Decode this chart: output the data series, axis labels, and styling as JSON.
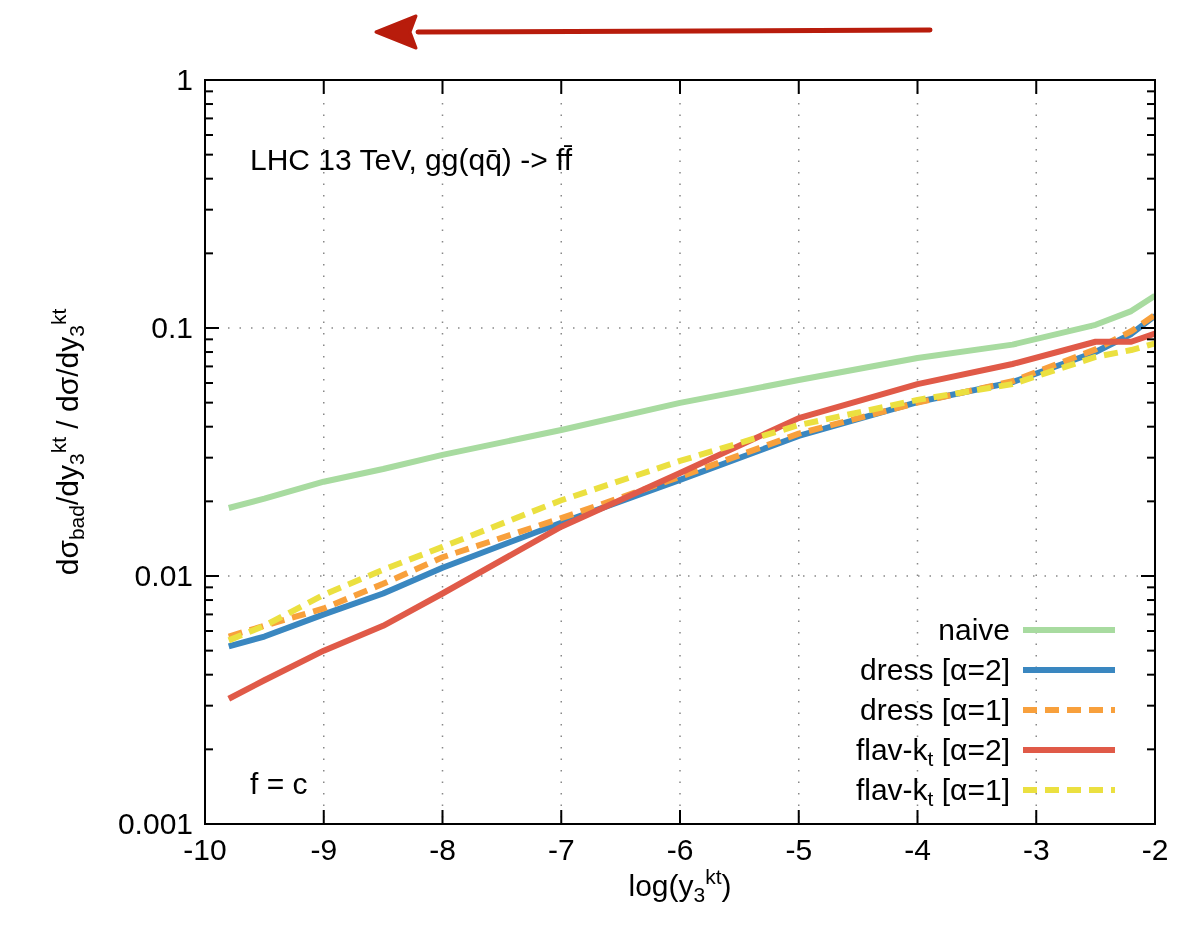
{
  "chart_data": {
    "type": "line",
    "xlabel": "log(y$_{3}$$^{kt}$)",
    "ylabel": "dσ$_{bad}$/dy$_{3}$$^{kt}$ / dσ/dy$_{3}$$^{kt}$",
    "annotations": [
      "LHC 13 TeV, gg(qq̄) -> ff̄",
      "f = c"
    ],
    "x": [
      -9.8,
      -9.5,
      -9,
      -8.5,
      -8,
      -7,
      -6,
      -5,
      -4,
      -3.2,
      -2.5,
      -2.2,
      -2
    ],
    "log": "y",
    "xlim": [
      -10,
      -2
    ],
    "ylim": [
      0.001,
      1
    ],
    "xticks": [
      -10,
      -9,
      -8,
      -7,
      -6,
      -5,
      -4,
      -3,
      -2
    ],
    "yticks": [
      0.001,
      {
        "value": 0.002,
        "label": null
      },
      {
        "value": 0.003,
        "label": null
      },
      {
        "value": 0.004,
        "label": null
      },
      {
        "value": 0.005,
        "label": null
      },
      {
        "value": 0.006,
        "label": null
      },
      {
        "value": 0.007,
        "label": null
      },
      {
        "value": 0.008,
        "label": null
      },
      {
        "value": 0.009,
        "label": null
      },
      0.01,
      {
        "value": 0.02,
        "label": null
      },
      {
        "value": 0.03,
        "label": null
      },
      {
        "value": 0.04,
        "label": null
      },
      {
        "value": 0.05,
        "label": null
      },
      {
        "value": 0.06,
        "label": null
      },
      {
        "value": 0.07,
        "label": null
      },
      {
        "value": 0.08,
        "label": null
      },
      {
        "value": 0.09,
        "label": null
      },
      0.1,
      {
        "value": 0.2,
        "label": null
      },
      {
        "value": 0.3,
        "label": null
      },
      {
        "value": 0.4,
        "label": null
      },
      {
        "value": 0.5,
        "label": null
      },
      {
        "value": 0.6,
        "label": null
      },
      {
        "value": 0.7,
        "label": null
      },
      {
        "value": 0.8,
        "label": null
      },
      {
        "value": 0.9,
        "label": null
      },
      1
    ],
    "grid": true,
    "legend": "bottom right",
    "series": [
      {
        "name": "naive",
        "color": "#a8dba0",
        "line_style": "solid",
        "values": [
          0.0188,
          0.0205,
          0.024,
          0.027,
          0.0308,
          0.0388,
          0.0499,
          0.0617,
          0.0757,
          0.0857,
          0.103,
          0.117,
          0.135
        ]
      },
      {
        "name": "dress [α=2]",
        "color": "#3a87c0",
        "line_style": "solid",
        "values": [
          0.0052,
          0.0057,
          0.007,
          0.0085,
          0.0108,
          0.0164,
          0.0244,
          0.0367,
          0.0503,
          0.0605,
          0.08,
          0.0946,
          0.112
        ]
      },
      {
        "name": "dress [α=1]",
        "color": "#f8a03c",
        "line_style": "dashed",
        "values": [
          0.0057,
          0.0063,
          0.0074,
          0.0093,
          0.0119,
          0.0171,
          0.0251,
          0.0375,
          0.05,
          0.061,
          0.082,
          0.097,
          0.113
        ]
      },
      {
        "name": "flav-k$_{t}$ [α=2]",
        "color": "#e05a48",
        "line_style": "solid",
        "values": [
          0.0032,
          0.0038,
          0.005,
          0.0063,
          0.0085,
          0.0158,
          0.026,
          0.0433,
          0.0594,
          0.0716,
          0.088,
          0.088,
          0.095
        ]
      },
      {
        "name": "flav-k$_{t}$ [α=1]",
        "color": "#ebe040",
        "line_style": "dashed",
        "values": [
          0.0055,
          0.0063,
          0.0084,
          0.0106,
          0.0131,
          0.0202,
          0.0291,
          0.0406,
          0.0513,
          0.0594,
          0.0765,
          0.0815,
          0.0866
        ]
      }
    ]
  }
}
